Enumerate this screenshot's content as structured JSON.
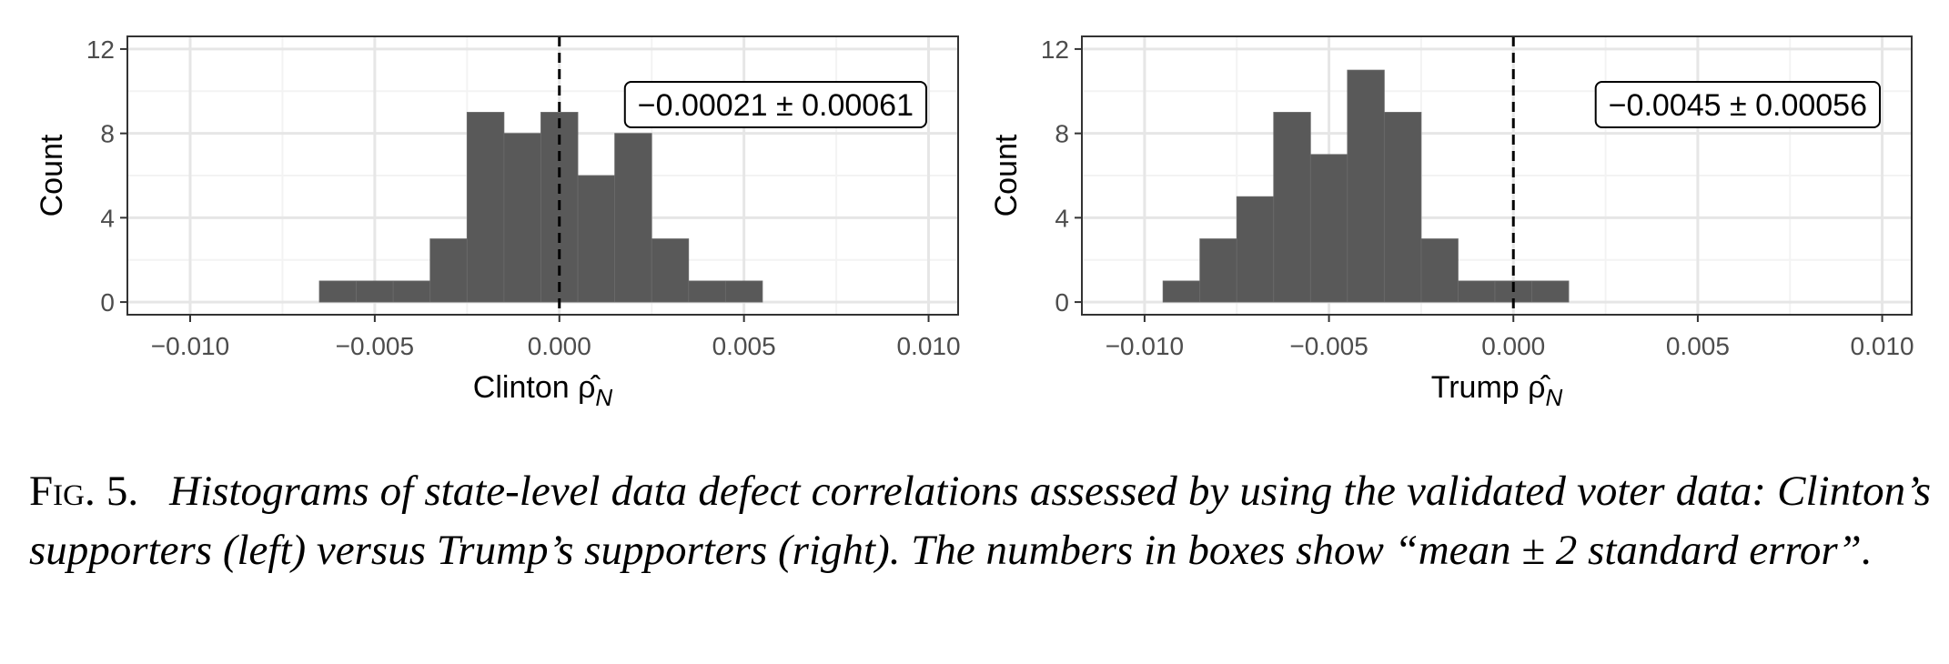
{
  "figure": {
    "label": "Fig. 5.",
    "caption": "Histograms of state-level data defect correlations assessed by using the validated voter data: Clinton’s supporters (left) versus Trump’s supporters (right). The numbers in boxes show “mean ± 2 standard error”."
  },
  "chart_data": [
    {
      "type": "bar",
      "variant": "histogram",
      "xlabel": "Clinton",
      "xlabel_symbol": "ρ̂",
      "xlabel_subscript": "N",
      "ylabel": "Count",
      "xlim": [
        -0.0117,
        0.0108
      ],
      "ylim": [
        -0.6,
        12.6
      ],
      "x_ticks": [
        -0.01,
        -0.005,
        0.0,
        0.005,
        0.01
      ],
      "x_tick_labels": [
        "−0.010",
        "−0.005",
        "0.000",
        "0.005",
        "0.010"
      ],
      "y_ticks": [
        0,
        4,
        8,
        12
      ],
      "y_tick_labels": [
        "0",
        "4",
        "8",
        "12"
      ],
      "bin_width": 0.001,
      "bin_centers": [
        -0.006,
        -0.005,
        -0.004,
        -0.003,
        -0.002,
        -0.001,
        0.0,
        0.001,
        0.002,
        0.003,
        0.004,
        0.005
      ],
      "counts": [
        1,
        1,
        1,
        3,
        9,
        8,
        9,
        6,
        8,
        3,
        1,
        1
      ],
      "reference_line_x": 0,
      "annotation": "−0.00021 ± 0.00061",
      "annotation_position": "top-right",
      "grid": true,
      "bar_color": "#595959"
    },
    {
      "type": "bar",
      "variant": "histogram",
      "xlabel": "Trump",
      "xlabel_symbol": "ρ̂",
      "xlabel_subscript": "N",
      "ylabel": "Count",
      "xlim": [
        -0.0117,
        0.0108
      ],
      "ylim": [
        -0.6,
        12.6
      ],
      "x_ticks": [
        -0.01,
        -0.005,
        0.0,
        0.005,
        0.01
      ],
      "x_tick_labels": [
        "−0.010",
        "−0.005",
        "0.000",
        "0.005",
        "0.010"
      ],
      "y_ticks": [
        0,
        4,
        8,
        12
      ],
      "y_tick_labels": [
        "0",
        "4",
        "8",
        "12"
      ],
      "bin_width": 0.001,
      "bin_centers": [
        -0.009,
        -0.008,
        -0.007,
        -0.006,
        -0.005,
        -0.004,
        -0.003,
        -0.002,
        -0.001,
        0.0,
        0.001
      ],
      "counts": [
        1,
        3,
        5,
        9,
        7,
        11,
        9,
        3,
        1,
        1,
        1
      ],
      "reference_line_x": 0,
      "annotation": "−0.0045 ± 0.00056",
      "annotation_position": "top-right",
      "grid": true,
      "bar_color": "#595959"
    }
  ]
}
